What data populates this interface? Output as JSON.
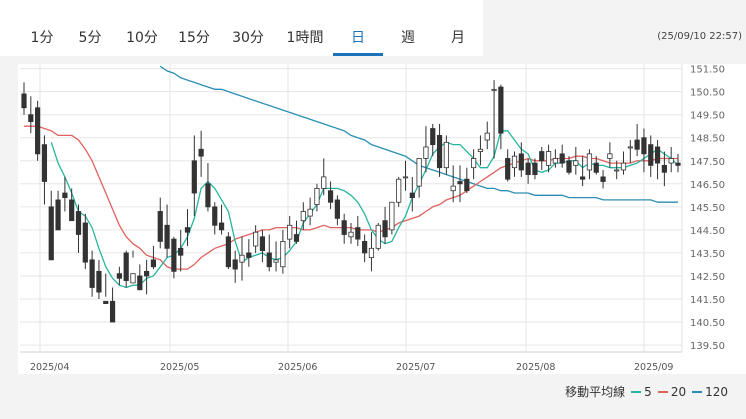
{
  "tabs": [
    {
      "label": "1分"
    },
    {
      "label": "5分"
    },
    {
      "label": "10分"
    },
    {
      "label": "15分"
    },
    {
      "label": "30分"
    },
    {
      "label": "1時間"
    },
    {
      "label": "日",
      "active": true
    },
    {
      "label": "週"
    },
    {
      "label": "月"
    }
  ],
  "timestamp": "(25/09/10 22:57)",
  "legend": {
    "title": "移動平均線",
    "items": [
      {
        "label": "5",
        "color": "#26b5a0"
      },
      {
        "label": "20",
        "color": "#e0615e"
      },
      {
        "label": "120",
        "color": "#2b8fb5"
      }
    ]
  },
  "chart_data": {
    "type": "candlestick",
    "grid": true,
    "ylim": [
      139.2,
      151.7
    ],
    "y_ticks": [
      "151.50",
      "150.50",
      "149.50",
      "148.50",
      "147.50",
      "146.50",
      "145.50",
      "144.50",
      "143.50",
      "142.50",
      "141.50",
      "140.50",
      "139.50"
    ],
    "x_ticks": [
      "2025/04",
      "2025/05",
      "2025/06",
      "2025/07",
      "2025/08",
      "2025/09"
    ],
    "colors": {
      "up": "#ffffff",
      "down": "#333333",
      "wick": "#333333"
    },
    "candles": [
      [
        150.4,
        150.9,
        149.8,
        149.5
      ],
      [
        149.5,
        150.3,
        149.2,
        148.7
      ],
      [
        149.8,
        150.1,
        147.8,
        147.5
      ],
      [
        148.2,
        148.6,
        146.6,
        145.6
      ],
      [
        145.5,
        146.2,
        143.2,
        143.6
      ],
      [
        145.8,
        146.2,
        144.5,
        145.2
      ],
      [
        146.1,
        146.8,
        145.9,
        145.3
      ],
      [
        145.8,
        146.3,
        144.9,
        145.2
      ],
      [
        145.3,
        145.6,
        144.3,
        143.5
      ],
      [
        144.8,
        145.2,
        143.1,
        142.8
      ],
      [
        143.2,
        143.6,
        142.0,
        141.6
      ],
      [
        142.7,
        143.2,
        141.8,
        141.5
      ],
      [
        141.4,
        142.6,
        141.3,
        141.6
      ],
      [
        141.4,
        142.0,
        140.5,
        140.8
      ],
      [
        142.6,
        142.9,
        142.4,
        142.1
      ],
      [
        143.5,
        143.6,
        142.3,
        142.0
      ],
      [
        142.2,
        143.6,
        142.6,
        143.3
      ],
      [
        142.5,
        143.0,
        141.9,
        142.2
      ],
      [
        142.7,
        143.2,
        142.5,
        141.7
      ],
      [
        143.2,
        143.8,
        142.9,
        142.8
      ],
      [
        145.3,
        145.9,
        144.0,
        143.7
      ],
      [
        144.7,
        145.6,
        143.7,
        143.3
      ],
      [
        144.1,
        144.2,
        142.7,
        142.4
      ],
      [
        143.7,
        144.5,
        143.4,
        142.7
      ],
      [
        144.6,
        145.4,
        144.4,
        143.8
      ],
      [
        147.5,
        148.6,
        146.1,
        145.1
      ],
      [
        148.0,
        148.8,
        147.7,
        146.8
      ],
      [
        146.5,
        147.4,
        145.5,
        145.3
      ],
      [
        145.5,
        145.7,
        144.7,
        144.3
      ],
      [
        144.8,
        145.6,
        144.5,
        144.3
      ],
      [
        144.2,
        144.4,
        142.9,
        142.8
      ],
      [
        143.2,
        143.6,
        142.8,
        142.2
      ],
      [
        143.1,
        144.2,
        143.4,
        142.3
      ],
      [
        143.5,
        144.1,
        143.3,
        142.9
      ],
      [
        143.8,
        144.7,
        144.4,
        143.5
      ],
      [
        144.2,
        144.5,
        143.6,
        143.1
      ],
      [
        143.5,
        144.3,
        142.9,
        142.7
      ],
      [
        143.1,
        144.0,
        143.2,
        142.7
      ],
      [
        142.9,
        144.5,
        144.0,
        142.6
      ],
      [
        144.1,
        145.1,
        144.7,
        143.7
      ],
      [
        144.3,
        144.9,
        144.0,
        143.9
      ],
      [
        144.9,
        145.7,
        145.3,
        144.5
      ],
      [
        145.1,
        145.9,
        145.4,
        144.7
      ],
      [
        145.6,
        146.5,
        146.3,
        145.3
      ],
      [
        146.3,
        147.6,
        146.8,
        146.0
      ],
      [
        146.2,
        146.6,
        145.7,
        145.4
      ],
      [
        145.8,
        146.0,
        145.0,
        144.7
      ],
      [
        144.9,
        145.2,
        144.3,
        143.9
      ],
      [
        144.2,
        144.8,
        144.4,
        143.9
      ],
      [
        144.6,
        145.1,
        144.1,
        143.8
      ],
      [
        144.0,
        144.3,
        143.5,
        143.1
      ],
      [
        143.3,
        144.4,
        143.7,
        142.7
      ],
      [
        143.7,
        144.8,
        144.7,
        143.6
      ],
      [
        144.9,
        145.5,
        144.2,
        143.9
      ],
      [
        144.5,
        145.7,
        145.7,
        144.3
      ],
      [
        145.7,
        146.8,
        146.7,
        145.5
      ],
      [
        146.8,
        147.5,
        146.8,
        146.2
      ],
      [
        146.1,
        146.8,
        145.9,
        145.3
      ],
      [
        146.4,
        147.5,
        147.6,
        145.9
      ],
      [
        147.6,
        149.0,
        148.1,
        147.0
      ],
      [
        148.9,
        149.1,
        148.2,
        147.7
      ],
      [
        148.6,
        149.1,
        147.2,
        146.8
      ],
      [
        147.2,
        148.6,
        148.3,
        146.9
      ],
      [
        146.2,
        147.3,
        146.4,
        145.7
      ],
      [
        146.6,
        147.3,
        146.5,
        145.7
      ],
      [
        146.7,
        147.2,
        146.2,
        146.1
      ],
      [
        147.2,
        148.0,
        147.6,
        146.7
      ],
      [
        147.9,
        148.6,
        148.0,
        147.3
      ],
      [
        148.4,
        149.2,
        148.7,
        148.0
      ],
      [
        150.6,
        151.0,
        150.6,
        147.6
      ],
      [
        150.7,
        150.8,
        148.7,
        148.0
      ],
      [
        147.6,
        148.0,
        146.7,
        146.6
      ],
      [
        147.2,
        147.9,
        147.7,
        146.8
      ],
      [
        147.8,
        148.3,
        147.1,
        146.8
      ],
      [
        147.4,
        147.6,
        146.9,
        146.5
      ],
      [
        147.4,
        147.6,
        146.9,
        146.7
      ],
      [
        147.9,
        148.1,
        147.5,
        147.1
      ],
      [
        147.3,
        148.2,
        147.9,
        147.0
      ],
      [
        147.4,
        148.0,
        147.6,
        147.2
      ],
      [
        147.8,
        148.2,
        147.4,
        147.2
      ],
      [
        147.5,
        147.7,
        147.0,
        146.9
      ],
      [
        147.3,
        148.1,
        147.5,
        146.9
      ],
      [
        146.8,
        147.7,
        146.7,
        146.4
      ],
      [
        147.1,
        148.0,
        147.8,
        146.7
      ],
      [
        147.4,
        147.7,
        147.0,
        146.9
      ],
      [
        146.8,
        147.1,
        146.6,
        146.3
      ],
      [
        147.6,
        148.3,
        147.8,
        147.2
      ],
      [
        147.1,
        147.5,
        147.1,
        146.7
      ],
      [
        147.1,
        147.9,
        147.4,
        146.9
      ],
      [
        148.1,
        148.4,
        148.1,
        147.4
      ],
      [
        148.4,
        149.1,
        148.0,
        147.7
      ],
      [
        148.5,
        148.9,
        147.8,
        147.0
      ],
      [
        148.2,
        148.6,
        147.3,
        146.8
      ],
      [
        148.1,
        148.4,
        147.4,
        146.7
      ],
      [
        147.3,
        147.9,
        147.0,
        146.4
      ],
      [
        147.4,
        148.1,
        147.6,
        147.0
      ],
      [
        147.4,
        147.8,
        147.3,
        147.0
      ]
    ],
    "ma5": [
      null,
      null,
      null,
      null,
      148.3,
      147.4,
      146.8,
      146.1,
      145.3,
      145.1,
      144.6,
      143.7,
      142.9,
      142.4,
      142.1,
      142.0,
      142.1,
      142.1,
      142.4,
      142.5,
      142.9,
      143.3,
      143.4,
      143.7,
      144.2,
      145.0,
      146.3,
      146.6,
      146.3,
      145.8,
      145.3,
      144.0,
      143.1,
      143.3,
      143.4,
      143.5,
      143.3,
      143.2,
      143.3,
      143.6,
      144.0,
      144.8,
      145.2,
      145.6,
      146.3,
      146.3,
      146.3,
      146.2,
      146.0,
      145.7,
      145.2,
      144.5,
      144.1,
      143.9,
      144.0,
      144.6,
      145.1,
      145.9,
      146.5,
      147.1,
      147.8,
      148.1,
      148.3,
      148.2,
      148.2,
      147.9,
      147.6,
      147.2,
      147.2,
      147.7,
      148.8,
      148.8,
      148.4,
      148.0,
      147.8,
      147.1,
      147.0,
      147.1,
      147.4,
      147.4,
      147.5,
      147.5,
      147.2,
      147.4,
      147.3,
      147.3,
      147.2,
      147.2,
      147.2,
      147.3,
      147.4,
      147.6,
      147.8,
      148.0,
      147.8,
      147.6,
      147.3
    ],
    "ma20": [
      149.0,
      149.0,
      149.0,
      148.9,
      148.8,
      148.6,
      148.6,
      148.6,
      148.4,
      148.0,
      147.5,
      146.8,
      146.1,
      145.4,
      144.7,
      144.2,
      143.9,
      143.7,
      143.4,
      143.3,
      143.2,
      142.9,
      142.8,
      142.8,
      142.8,
      143.0,
      143.3,
      143.5,
      143.7,
      143.8,
      143.9,
      144.1,
      144.2,
      144.3,
      144.4,
      144.5,
      144.5,
      144.6,
      144.6,
      144.6,
      144.6,
      144.5,
      144.5,
      144.6,
      144.7,
      144.6,
      144.6,
      144.6,
      144.6,
      144.5,
      144.5,
      144.5,
      144.4,
      144.5,
      144.6,
      144.8,
      144.9,
      145.0,
      145.1,
      145.3,
      145.5,
      145.6,
      145.8,
      145.9,
      146.0,
      146.2,
      146.4,
      146.6,
      146.8,
      147.0,
      147.2,
      147.3,
      147.4,
      147.5,
      147.6,
      147.5,
      147.5,
      147.5,
      147.6,
      147.6,
      147.6,
      147.7,
      147.7,
      147.6,
      147.6,
      147.5,
      147.4,
      147.4,
      147.4,
      147.4,
      147.5,
      147.5,
      147.5,
      147.6,
      147.6,
      147.6,
      147.6
    ],
    "ma120": [
      null,
      null,
      null,
      null,
      null,
      null,
      null,
      null,
      null,
      null,
      null,
      null,
      null,
      null,
      null,
      null,
      null,
      null,
      null,
      null,
      151.6,
      151.4,
      151.3,
      151.1,
      151.0,
      150.9,
      150.8,
      150.7,
      150.6,
      150.6,
      150.5,
      150.4,
      150.3,
      150.2,
      150.1,
      150.0,
      149.9,
      149.8,
      149.7,
      149.6,
      149.5,
      149.4,
      149.3,
      149.2,
      149.1,
      149.0,
      148.9,
      148.8,
      148.6,
      148.5,
      148.4,
      148.2,
      148.1,
      148.0,
      147.9,
      147.8,
      147.7,
      147.5,
      147.3,
      147.2,
      147.1,
      147.0,
      146.9,
      146.8,
      146.7,
      146.6,
      146.5,
      146.4,
      146.3,
      146.3,
      146.2,
      146.2,
      146.1,
      146.1,
      146.1,
      146.0,
      146.0,
      146.0,
      146.0,
      146.0,
      145.9,
      145.9,
      145.9,
      145.9,
      145.9,
      145.8,
      145.8,
      145.8,
      145.8,
      145.8,
      145.8,
      145.8,
      145.8,
      145.7,
      145.7,
      145.7,
      145.7
    ]
  }
}
